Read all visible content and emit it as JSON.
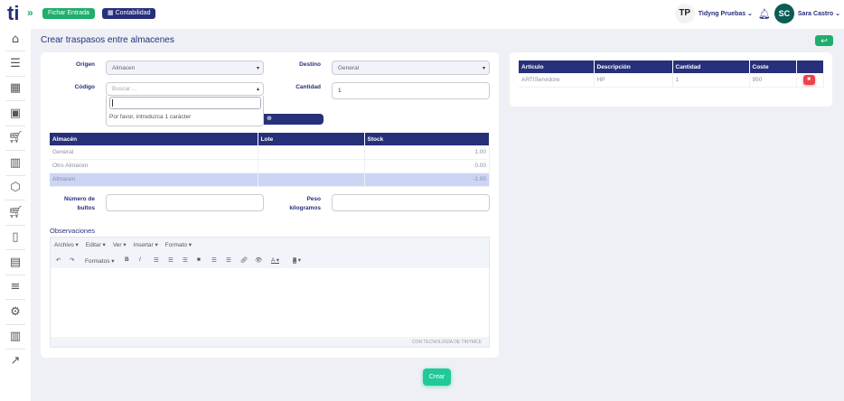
{
  "header": {
    "fichar_label": "Fichar Entrada",
    "contabilidad_label": "Contabilidad",
    "company_initials": "TP",
    "company_name": "Tidyng Pruebas",
    "user_initials": "SC",
    "user_name": "Sara Castro"
  },
  "sidebar": {
    "items": [
      "home-icon",
      "sliders-icon",
      "calendar-icon",
      "briefcase-icon",
      "cart-icon",
      "store-icon",
      "box-icon",
      "cart-alt-icon",
      "clipboard-icon",
      "suitcase-icon",
      "list-icon",
      "gear-search-icon",
      "books-icon",
      "trending-icon"
    ]
  },
  "page": {
    "title": "Crear traspasos entre almacenes",
    "create_label": "Crear"
  },
  "form": {
    "origen_label": "Origen",
    "origen_value": "Almacen",
    "destino_label": "Destino",
    "destino_value": "General",
    "codigo_label": "Código",
    "codigo_placeholder": "Buscar ...",
    "codigo_search_value": "",
    "dropdown_message": "Por favor, introduzca 1 carácter",
    "cantidad_label": "Cantidad",
    "cantidad_value": "1",
    "bultos_label_1": "Número de",
    "bultos_label_2": "bultos",
    "bultos_value": "",
    "peso_label_1": "Peso",
    "peso_label_2": "kilogramos",
    "peso_value": "",
    "observaciones_label": "Observaciones"
  },
  "stock_table": {
    "headers": [
      "Almacén",
      "Lote",
      "Stock"
    ],
    "rows": [
      [
        "General",
        "",
        "1.00"
      ],
      [
        "Otro Almacen",
        "",
        "0.00"
      ],
      [
        "Almacen",
        "",
        "-1.00"
      ]
    ]
  },
  "editor": {
    "menu": [
      "Archivo",
      "Editar",
      "Ver",
      "Insertar",
      "Formato"
    ],
    "formats_label": "Formatos",
    "footer": "CON TECNOLOGÍA DE TINYMCE"
  },
  "lines_table": {
    "headers": [
      "Artículo",
      "Descripción",
      "Cantidad",
      "Coste",
      ""
    ],
    "rows": [
      [
        "ARTIServidore",
        "HP",
        "1",
        "950"
      ]
    ]
  },
  "colors": {
    "navy": "#27307a",
    "green": "#1fae6b",
    "danger": "#f0414e",
    "highlight_row": "#cdd5f4"
  }
}
